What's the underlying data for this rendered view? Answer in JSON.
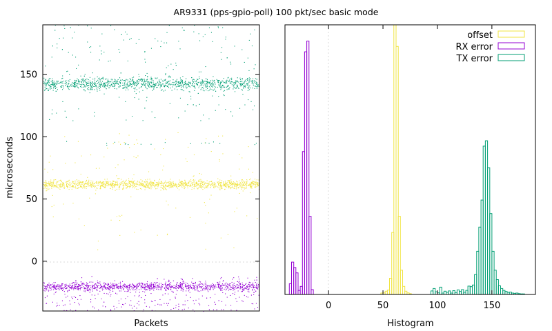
{
  "title": "AR9331 (pps-gpio-poll) 100 pkt/sec basic mode",
  "chart_data": [
    {
      "type": "scatter",
      "xlabel": "Packets",
      "ylabel": "microseconds",
      "ylim": [
        -40,
        190
      ],
      "yticks": [
        "0",
        "50",
        "100",
        "150"
      ],
      "ytick_values": [
        0,
        50,
        100,
        150
      ],
      "grid": "dotted, y only",
      "series": [
        {
          "name": "offset",
          "color": "#f0e442",
          "center": 62,
          "spread": 2.5,
          "notes": "dense band near 62 with sparse outliers up to ~110 and down to ~0"
        },
        {
          "name": "RX error",
          "color": "#9400d3",
          "center": -20,
          "spread": 2.5,
          "notes": "dense band near -20 with outliers down to -40"
        },
        {
          "name": "TX error",
          "color": "#009e73",
          "center": 143,
          "spread": 3.5,
          "notes": "dense band near 143 with outliers up to ~190 and a row near 95"
        }
      ]
    },
    {
      "type": "bar",
      "style": "step histogram",
      "xlabel": "Histogram",
      "xlim": [
        -40,
        190
      ],
      "xticks": [
        "0",
        "50",
        "100",
        "150"
      ],
      "xtick_values": [
        0,
        50,
        100,
        150
      ],
      "legend": "top-right",
      "series": [
        {
          "name": "offset",
          "color": "#f0e442",
          "bins": [
            [
              48,
              0.5
            ],
            [
              50,
              0.6
            ],
            [
              52,
              1.2
            ],
            [
              54,
              1.6
            ],
            [
              56,
              6
            ],
            [
              58,
              23
            ],
            [
              60,
              100
            ],
            [
              62,
              92
            ],
            [
              64,
              29
            ],
            [
              66,
              9
            ],
            [
              68,
              3
            ],
            [
              70,
              1.2
            ],
            [
              72,
              0.6
            ],
            [
              74,
              0.3
            ]
          ]
        },
        {
          "name": "RX error",
          "color": "#9400d3",
          "bins": [
            [
              -36,
              4
            ],
            [
              -34,
              12
            ],
            [
              -32,
              10
            ],
            [
              -30,
              8
            ],
            [
              -28,
              1.5
            ],
            [
              -26,
              3
            ],
            [
              -24,
              53
            ],
            [
              -22,
              90
            ],
            [
              -20,
              94
            ],
            [
              -18,
              29
            ],
            [
              -16,
              1.8
            ]
          ]
        },
        {
          "name": "TX error",
          "color": "#009e73",
          "bins": [
            [
              94,
              1.3
            ],
            [
              96,
              2.2
            ],
            [
              98,
              1
            ],
            [
              100,
              0.6
            ],
            [
              102,
              2.7
            ],
            [
              104,
              0.5
            ],
            [
              106,
              1.2
            ],
            [
              108,
              0.8
            ],
            [
              110,
              1.3
            ],
            [
              112,
              0.5
            ],
            [
              114,
              1.4
            ],
            [
              116,
              0.7
            ],
            [
              118,
              1.7
            ],
            [
              120,
              1.1
            ],
            [
              122,
              1.8
            ],
            [
              124,
              0.8
            ],
            [
              126,
              1.5
            ],
            [
              128,
              3.1
            ],
            [
              130,
              2.9
            ],
            [
              132,
              3.5
            ],
            [
              134,
              7.4
            ],
            [
              136,
              16
            ],
            [
              138,
              25
            ],
            [
              140,
              35
            ],
            [
              142,
              55
            ],
            [
              144,
              57
            ],
            [
              146,
              47
            ],
            [
              148,
              30
            ],
            [
              150,
              16
            ],
            [
              152,
              9
            ],
            [
              154,
              5.5
            ],
            [
              156,
              3.2
            ],
            [
              158,
              2.2
            ],
            [
              160,
              1.5
            ],
            [
              162,
              1.1
            ],
            [
              164,
              0.8
            ],
            [
              166,
              0.9
            ],
            [
              168,
              0.5
            ],
            [
              170,
              0.4
            ],
            [
              172,
              0.5
            ],
            [
              174,
              0.3
            ],
            [
              176,
              0.2
            ],
            [
              178,
              0.2
            ]
          ]
        }
      ]
    }
  ]
}
